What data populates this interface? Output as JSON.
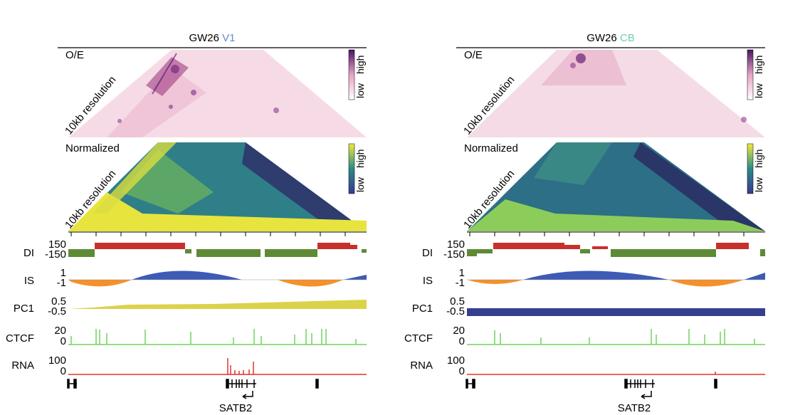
{
  "figure": {
    "panels": [
      {
        "key": "v1",
        "title": {
          "prefix": "GW26",
          "region": "V1",
          "region_color": "#5b8fd0"
        },
        "oe": {
          "label": "O/E",
          "resolution": "10kb resolution",
          "legend_high": "high",
          "legend_low": "low"
        },
        "norm": {
          "label": "Normalized",
          "resolution": "10kb resolution",
          "legend_high": "high",
          "legend_low": "low"
        },
        "tracks": {
          "di": {
            "label": "DI",
            "top": "150",
            "bottom": "-150"
          },
          "is": {
            "label": "IS",
            "top": "1",
            "bottom": "-1"
          },
          "pc1": {
            "label": "PC1",
            "top": "0.5",
            "bottom": "-0.5"
          },
          "ctcf": {
            "label": "CTCF",
            "top": "20",
            "bottom": "0"
          },
          "rna": {
            "label": "RNA",
            "top": "100",
            "bottom": "0"
          }
        },
        "gene": "SATB2"
      },
      {
        "key": "cb",
        "title": {
          "prefix": "GW26",
          "region": "CB",
          "region_color": "#6fd0b0"
        },
        "oe": {
          "label": "O/E",
          "resolution": "10kb resolution",
          "legend_high": "high",
          "legend_low": "low"
        },
        "norm": {
          "label": "Normalized",
          "resolution": "10kb resolution",
          "legend_high": "high",
          "legend_low": "low"
        },
        "tracks": {
          "di": {
            "label": "DI",
            "top": "150",
            "bottom": "-150"
          },
          "is": {
            "label": "IS",
            "top": "1",
            "bottom": "-1"
          },
          "pc1": {
            "label": "PC1",
            "top": "0.5",
            "bottom": "-0.5"
          },
          "ctcf": {
            "label": "CTCF",
            "top": "20",
            "bottom": "0"
          },
          "rna": {
            "label": "RNA",
            "top": "100",
            "bottom": "0"
          }
        },
        "gene": "SATB2"
      }
    ],
    "colors": {
      "di_pos": "#c8302b",
      "di_neg": "#5e8a36",
      "is_pos": "#3d5bb5",
      "is_neg": "#f5902a",
      "pc1": "#dcd24a",
      "pc1_cb": "#34408f",
      "ctcf": "#6fd45a",
      "rna": "#e0322a",
      "oe_low": "#ffffff",
      "oe_mid": "#e6a3c4",
      "oe_high": "#4a1466",
      "norm_low": "#3a3a8f",
      "norm_mid": "#2b8a8a",
      "norm_high": "#f0ea3a"
    }
  }
}
